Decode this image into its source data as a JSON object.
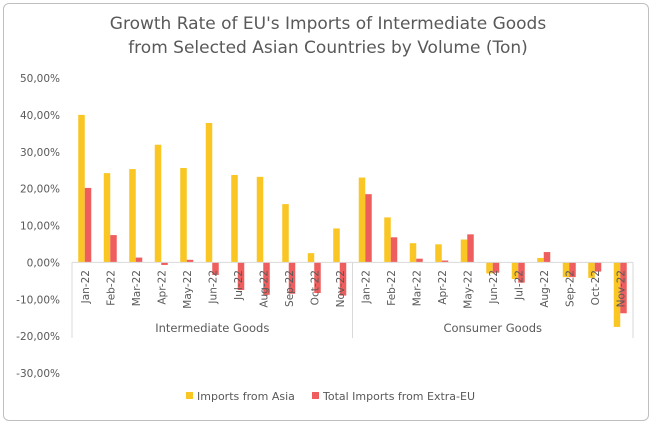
{
  "chart_data": {
    "type": "bar",
    "title_line1": "Growth Rate of EU's Imports of Intermediate Goods",
    "title_line2": "from Selected Asian Countries by Volume (Ton)",
    "y_ticks": [
      "50,00%",
      "40,00%",
      "30,00%",
      "20,00%",
      "10,00%",
      "0,00%",
      "-10,00%",
      "-20,00%",
      "-30,00%"
    ],
    "ylim": [
      -30,
      50
    ],
    "grid": false,
    "legend_position": "bottom",
    "groups": [
      {
        "name": "Intermediate Goods",
        "categories": [
          "Jan-22",
          "Feb-22",
          "Mar-22",
          "Apr-22",
          "May-22",
          "Jun-22",
          "Jul-22",
          "Aug-22",
          "Sep-22",
          "Oct-22",
          "Nov-22"
        ]
      },
      {
        "name": "Consumer Goods",
        "categories": [
          "Jan-22",
          "Feb-22",
          "Mar-22",
          "Apr-22",
          "May-22",
          "Jun-22",
          "Jul-22",
          "Aug-22",
          "Sep-22",
          "Oct-22",
          "Nov-22"
        ]
      }
    ],
    "series": [
      {
        "name": "Imports from Asia",
        "color": "#F9C623",
        "values": [
          40.0,
          24.2,
          25.3,
          31.9,
          25.6,
          37.8,
          23.7,
          23.2,
          15.8,
          2.5,
          9.2,
          23.0,
          12.2,
          5.2,
          4.9,
          6.2,
          -3.0,
          -4.5,
          1.2,
          -4.0,
          -4.2,
          -17.5
        ]
      },
      {
        "name": "Total Imports from Extra-EU",
        "color": "#EF5E5E",
        "values": [
          20.2,
          7.4,
          1.3,
          -0.7,
          0.7,
          -3.4,
          -7.5,
          -8.8,
          -8.5,
          -8.3,
          -9.0,
          18.5,
          6.8,
          1.0,
          0.5,
          7.6,
          -2.8,
          -5.5,
          2.8,
          -4.0,
          -2.5,
          -13.8
        ]
      }
    ]
  }
}
